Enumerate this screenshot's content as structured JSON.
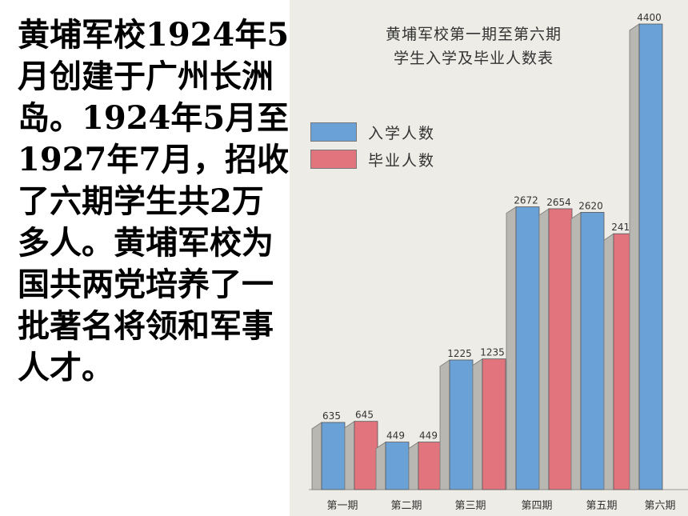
{
  "slide_text": "黄埔军校1924年5月创建于广州长洲岛。1924年5月至1927年7月，招收了六期学生共2万多人。黄埔军校为国共两党培养了一批著名将领和军事人才。",
  "colors": {
    "enrolled": "#6aa2d8",
    "graduated": "#e2747e",
    "side": "#b9b7b2",
    "panel": "#eeece7"
  },
  "chart_data": {
    "type": "bar",
    "title_line1": "黄埔军校第一期至第六期",
    "title_line2": "学生入学及毕业人数表",
    "categories": [
      "第一期",
      "第二期",
      "第三期",
      "第四期",
      "第五期",
      "第六期"
    ],
    "series": [
      {
        "name": "入学人数",
        "values": [
          635,
          449,
          1225,
          2672,
          2620,
          4400
        ]
      },
      {
        "name": "毕业人数",
        "values": [
          645,
          449,
          1235,
          2654,
          2418,
          null
        ]
      }
    ],
    "ylim": [
      0,
      4400
    ],
    "legend_position": "top-left",
    "grid": false
  }
}
